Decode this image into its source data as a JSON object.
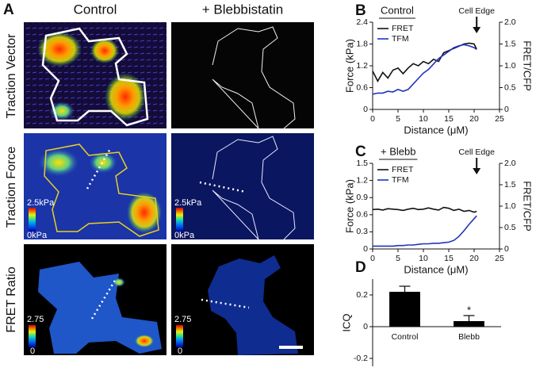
{
  "panel_a": {
    "label": "A",
    "columns": [
      "Control",
      "+ Blebbistatin"
    ],
    "rows": [
      "Traction Vector",
      "Traction Force",
      "FRET Ratio"
    ],
    "force_scale": [
      "2.5kPa",
      "0kPa"
    ],
    "fret_scale": [
      "2.75",
      "0"
    ]
  },
  "chart_data": [
    {
      "type": "line",
      "label": "B",
      "title": "Control",
      "xlabel": "Distance (μM)",
      "ylabel": "Force (kPa)",
      "y2label": "FRET/CFP",
      "annotation": "Cell Edge",
      "x": [
        0,
        1,
        2,
        3,
        4,
        5,
        6,
        7,
        8,
        9,
        10,
        11,
        12,
        13,
        14,
        15,
        16,
        17,
        18,
        19,
        20,
        20.5
      ],
      "series": [
        {
          "name": "FRET",
          "color": "#111111",
          "axis": "y2",
          "values": [
            0.88,
            0.65,
            0.85,
            0.72,
            0.9,
            0.95,
            0.82,
            0.95,
            1.05,
            1.0,
            1.1,
            1.05,
            1.15,
            1.1,
            1.3,
            1.35,
            1.4,
            1.45,
            1.5,
            1.52,
            1.5,
            1.38
          ]
        },
        {
          "name": "TFM",
          "color": "#2233bb",
          "values": [
            0.42,
            0.45,
            0.45,
            0.5,
            0.48,
            0.55,
            0.5,
            0.55,
            0.7,
            0.85,
            1.0,
            1.1,
            1.25,
            1.4,
            1.5,
            1.6,
            1.7,
            1.75,
            1.78,
            1.75,
            1.7,
            1.65
          ]
        }
      ],
      "xlim": [
        0,
        25
      ],
      "xticks": [
        0,
        5,
        10,
        15,
        20,
        25
      ],
      "ylim": [
        0,
        2.4
      ],
      "yticks": [
        0,
        0.6,
        1.2,
        1.8,
        2.4
      ],
      "y2lim": [
        0,
        2.0
      ],
      "y2ticks": [
        0,
        0.5,
        {
          "value": 1.0,
          "label": "1.0"
        },
        1.5,
        {
          "value": 2.0,
          "label": "2.0"
        }
      ]
    },
    {
      "type": "line",
      "label": "C",
      "title": "+ Blebb",
      "xlabel": "Distance (μM)",
      "ylabel": "Force (kPa)",
      "y2label": "FRET/CFP",
      "annotation": "Cell Edge",
      "x": [
        0,
        1,
        2,
        3,
        4,
        5,
        6,
        7,
        8,
        9,
        10,
        11,
        12,
        13,
        14,
        15,
        16,
        17,
        18,
        19,
        20,
        20.5
      ],
      "series": [
        {
          "name": "FRET",
          "color": "#111111",
          "axis": "y2",
          "values": [
            0.92,
            0.93,
            0.91,
            0.94,
            0.93,
            0.92,
            0.9,
            0.93,
            0.95,
            0.92,
            0.93,
            0.96,
            0.93,
            0.91,
            0.97,
            0.95,
            0.9,
            0.93,
            0.88,
            0.9,
            0.86,
            0.88
          ]
        },
        {
          "name": "TFM",
          "color": "#2233bb",
          "values": [
            0.05,
            0.05,
            0.05,
            0.05,
            0.05,
            0.06,
            0.06,
            0.07,
            0.07,
            0.08,
            0.09,
            0.09,
            0.1,
            0.1,
            0.11,
            0.12,
            0.15,
            0.22,
            0.32,
            0.43,
            0.53,
            0.58
          ]
        }
      ],
      "xlim": [
        0,
        25
      ],
      "xticks": [
        0,
        5,
        10,
        15,
        20,
        25
      ],
      "ylim": [
        0,
        1.5
      ],
      "yticks": [
        0,
        0.3,
        0.6,
        0.9,
        1.2,
        1.5
      ],
      "y2lim": [
        0,
        2.0
      ],
      "y2ticks": [
        0,
        0.5,
        {
          "value": 1.0,
          "label": "1.0"
        },
        1.5,
        {
          "value": 2.0,
          "label": "2.0"
        }
      ]
    },
    {
      "type": "bar",
      "label": "D",
      "ylabel": "ICQ",
      "categories": [
        "Control",
        "Blebb"
      ],
      "values": [
        0.22,
        0.035
      ],
      "errors": [
        0.035,
        0.035
      ],
      "color": "#000000",
      "annotation": "*",
      "ylim": [
        -0.25,
        0.3
      ],
      "yticks": [
        -0.2,
        0,
        0.2
      ]
    }
  ]
}
